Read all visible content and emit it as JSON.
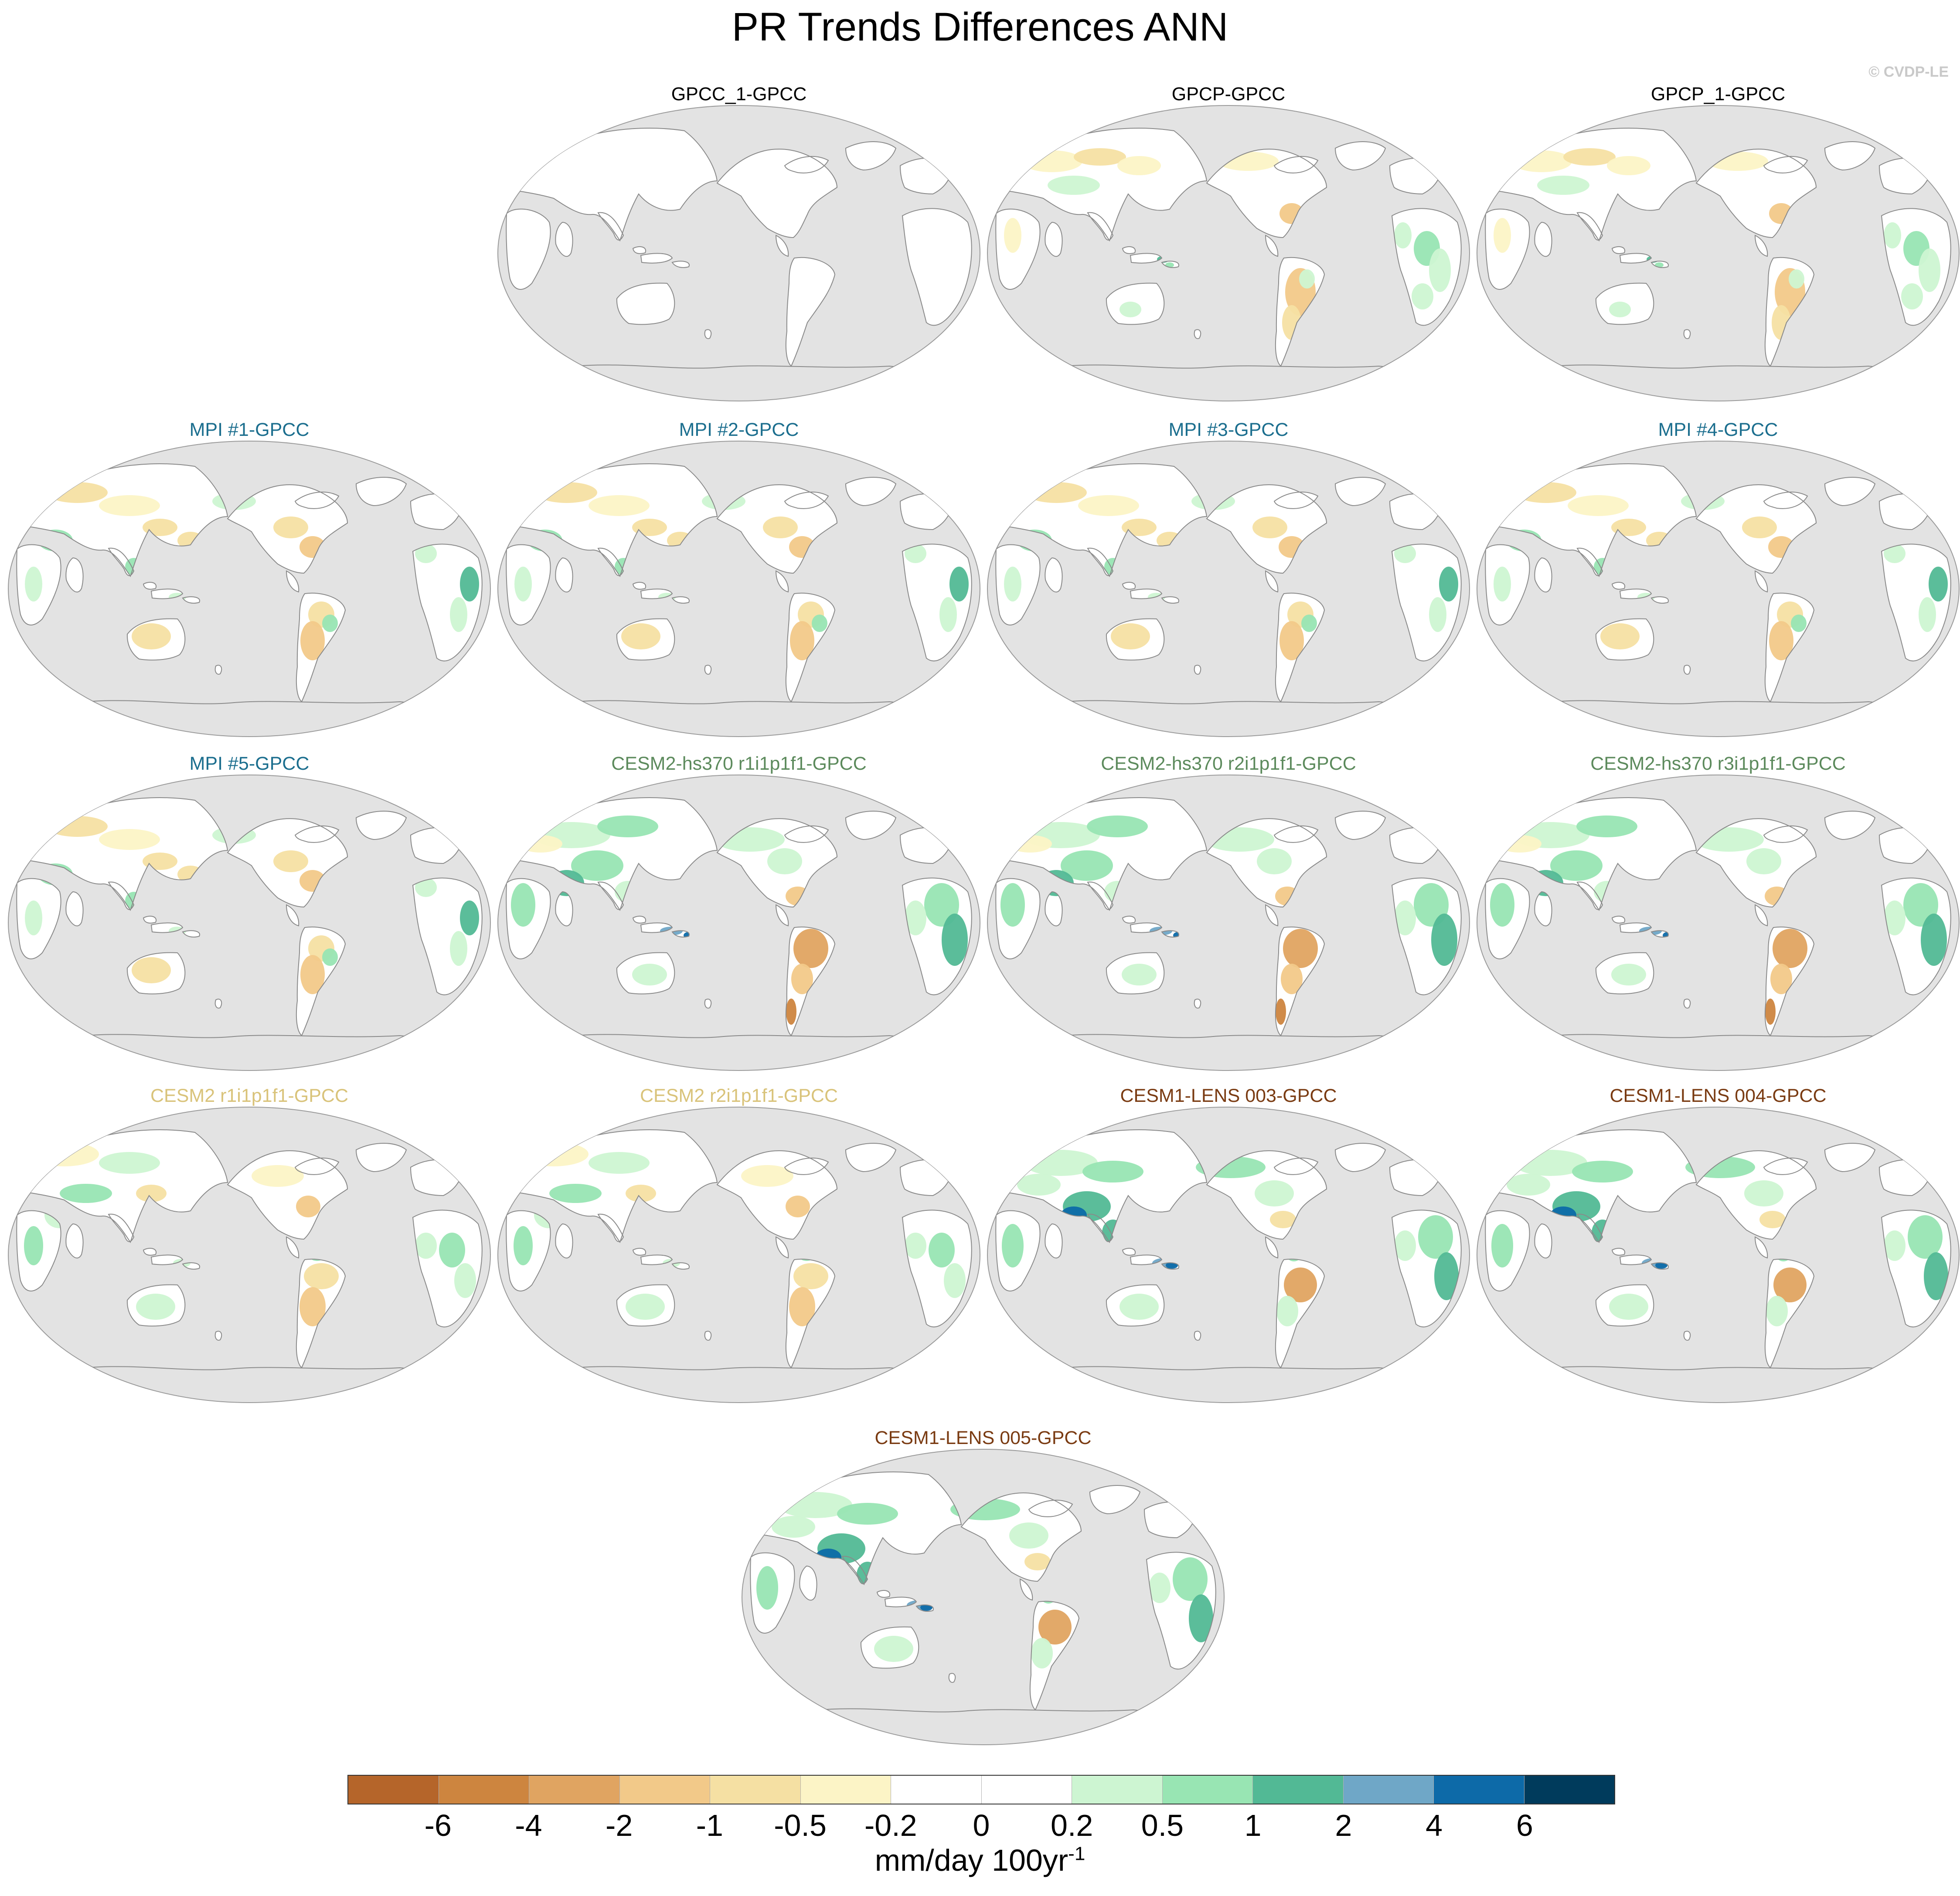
{
  "title": "PR Trends Differences ANN",
  "watermark": "© CVDP-LE",
  "colors": {
    "ocean": "#e3e3e3",
    "land_neutral": "#ffffff",
    "coast": "#8a8a8a",
    "title_obs": "#000000",
    "title_mpi": "#1b6e8e",
    "title_cesm2_hs370": "#5c8a5c",
    "title_cesm2": "#d9c37a",
    "title_cesm1_lens": "#7a3b12"
  },
  "panels": [
    {
      "title": "GPCC_1-GPCC",
      "group": "obs",
      "pattern": "blank"
    },
    {
      "title": "GPCP-GPCC",
      "group": "obs",
      "pattern": "obs"
    },
    {
      "title": "GPCP_1-GPCC",
      "group": "obs",
      "pattern": "obs"
    },
    {
      "title": "MPI #1-GPCC",
      "group": "mpi",
      "pattern": "mpi"
    },
    {
      "title": "MPI #2-GPCC",
      "group": "mpi",
      "pattern": "mpi"
    },
    {
      "title": "MPI #3-GPCC",
      "group": "mpi",
      "pattern": "mpi"
    },
    {
      "title": "MPI #4-GPCC",
      "group": "mpi",
      "pattern": "mpi"
    },
    {
      "title": "MPI #5-GPCC",
      "group": "mpi",
      "pattern": "mpi"
    },
    {
      "title": "CESM2-hs370 r1i1p1f1-GPCC",
      "group": "cesm2_hs370",
      "pattern": "hs370"
    },
    {
      "title": "CESM2-hs370 r2i1p1f1-GPCC",
      "group": "cesm2_hs370",
      "pattern": "hs370"
    },
    {
      "title": "CESM2-hs370 r3i1p1f1-GPCC",
      "group": "cesm2_hs370",
      "pattern": "hs370"
    },
    {
      "title": "CESM2 r1i1p1f1-GPCC",
      "group": "cesm2",
      "pattern": "cesm2"
    },
    {
      "title": "CESM2 r2i1p1f1-GPCC",
      "group": "cesm2",
      "pattern": "cesm2"
    },
    {
      "title": "CESM1-LENS 003-GPCC",
      "group": "cesm1_lens",
      "pattern": "lens"
    },
    {
      "title": "CESM1-LENS 004-GPCC",
      "group": "cesm1_lens",
      "pattern": "lens"
    },
    {
      "title": "CESM1-LENS 005-GPCC",
      "group": "cesm1_lens",
      "pattern": "lens"
    }
  ],
  "colorbar": {
    "colors": [
      "#b5652a",
      "#cd853f",
      "#e0a461",
      "#f2c989",
      "#f5e0a3",
      "#fcf4c6",
      "#ffffff",
      "#ffffff",
      "#cdf5d2",
      "#98e5b3",
      "#52b995",
      "#6fa7c7",
      "#0d6aa8",
      "#003b5c"
    ],
    "labels": [
      "-6",
      "-4",
      "-2",
      "-1",
      "-0.5",
      "-0.2",
      "0",
      "0.2",
      "0.5",
      "1",
      "2",
      "4",
      "6"
    ],
    "units": "mm/day 100yr",
    "units_exponent": "-1"
  }
}
